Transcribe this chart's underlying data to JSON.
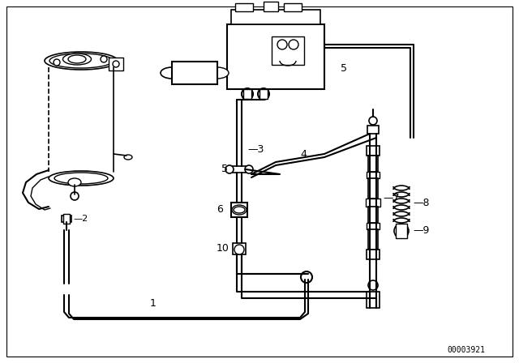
{
  "background_color": "#ffffff",
  "line_color": "#000000",
  "diagram_id": "00003921",
  "figure_width": 6.4,
  "figure_height": 4.48,
  "dpi": 100
}
